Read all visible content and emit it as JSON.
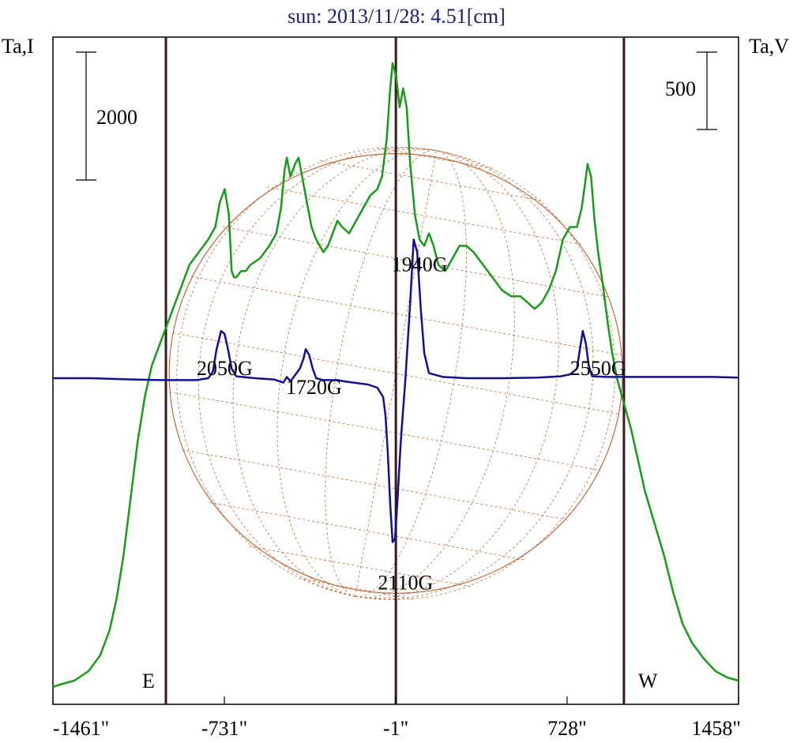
{
  "chart_data": {
    "type": "line",
    "title": "sun: 2013/11/28: 4.51[cm]",
    "left_axis_label": "Ta,I",
    "right_axis_label": "Ta,V",
    "xlim": [
      -1461,
      1458
    ],
    "x_ticks": [
      {
        "value": -1461,
        "label": "-1461\""
      },
      {
        "value": -731,
        "label": "-731\""
      },
      {
        "value": -1,
        "label": "-1\""
      },
      {
        "value": 728,
        "label": "728\""
      },
      {
        "value": 1458,
        "label": "1458\""
      }
    ],
    "scale_bars": [
      {
        "side": "left",
        "label": "2000"
      },
      {
        "side": "right",
        "label": "500"
      }
    ],
    "limb_lines": [
      {
        "x": -980,
        "label": "E"
      },
      {
        "x": -1,
        "label": ""
      },
      {
        "x": 970,
        "label": "W"
      }
    ],
    "solar_disk": {
      "center_x": -1,
      "radius": 965
    },
    "annotations": [
      {
        "text": "1940G",
        "x": 100,
        "level": 0.67
      },
      {
        "text": "2050G",
        "x": -730,
        "level": 0.505
      },
      {
        "text": "1720G",
        "x": -350,
        "level": 0.475
      },
      {
        "text": "2550G",
        "x": 860,
        "level": 0.505
      },
      {
        "text": "2110G",
        "x": 40,
        "level": 0.165
      }
    ],
    "colors": {
      "intensity": "#1a9a1a",
      "polarization": "#101090",
      "limb_lines": "#3a1a1a",
      "disk": "#c06a3a",
      "title": "#1c1c74",
      "frame": "#000000"
    },
    "series": [
      {
        "key": "intensity",
        "ylim": [
          0,
          1
        ],
        "points": [
          [
            -1461,
            0.01
          ],
          [
            -1420,
            0.015
          ],
          [
            -1370,
            0.02
          ],
          [
            -1310,
            0.035
          ],
          [
            -1260,
            0.06
          ],
          [
            -1220,
            0.1
          ],
          [
            -1190,
            0.15
          ],
          [
            -1160,
            0.22
          ],
          [
            -1130,
            0.31
          ],
          [
            -1100,
            0.4
          ],
          [
            -1070,
            0.47
          ],
          [
            -1040,
            0.52
          ],
          [
            -1000,
            0.56
          ],
          [
            -960,
            0.6
          ],
          [
            -920,
            0.64
          ],
          [
            -880,
            0.68
          ],
          [
            -840,
            0.7
          ],
          [
            -800,
            0.72
          ],
          [
            -770,
            0.74
          ],
          [
            -750,
            0.78
          ],
          [
            -730,
            0.8
          ],
          [
            -712,
            0.76
          ],
          [
            -700,
            0.67
          ],
          [
            -690,
            0.66
          ],
          [
            -680,
            0.66
          ],
          [
            -660,
            0.67
          ],
          [
            -640,
            0.67
          ],
          [
            -620,
            0.68
          ],
          [
            -580,
            0.69
          ],
          [
            -540,
            0.71
          ],
          [
            -510,
            0.73
          ],
          [
            -490,
            0.77
          ],
          [
            -475,
            0.83
          ],
          [
            -465,
            0.85
          ],
          [
            -450,
            0.82
          ],
          [
            -430,
            0.84
          ],
          [
            -415,
            0.85
          ],
          [
            -400,
            0.82
          ],
          [
            -380,
            0.78
          ],
          [
            -360,
            0.74
          ],
          [
            -340,
            0.72
          ],
          [
            -310,
            0.7
          ],
          [
            -290,
            0.71
          ],
          [
            -270,
            0.73
          ],
          [
            -250,
            0.75
          ],
          [
            -230,
            0.74
          ],
          [
            -200,
            0.73
          ],
          [
            -170,
            0.75
          ],
          [
            -140,
            0.77
          ],
          [
            -110,
            0.79
          ],
          [
            -80,
            0.8
          ],
          [
            -60,
            0.82
          ],
          [
            -40,
            0.88
          ],
          [
            -25,
            0.96
          ],
          [
            -15,
            1.0
          ],
          [
            0,
            0.98
          ],
          [
            15,
            0.93
          ],
          [
            30,
            0.96
          ],
          [
            45,
            0.93
          ],
          [
            60,
            0.84
          ],
          [
            80,
            0.76
          ],
          [
            100,
            0.72
          ],
          [
            120,
            0.71
          ],
          [
            140,
            0.73
          ],
          [
            160,
            0.71
          ],
          [
            180,
            0.68
          ],
          [
            210,
            0.67
          ],
          [
            240,
            0.69
          ],
          [
            270,
            0.71
          ],
          [
            300,
            0.71
          ],
          [
            330,
            0.7
          ],
          [
            370,
            0.68
          ],
          [
            410,
            0.66
          ],
          [
            450,
            0.64
          ],
          [
            490,
            0.63
          ],
          [
            530,
            0.63
          ],
          [
            560,
            0.62
          ],
          [
            590,
            0.61
          ],
          [
            620,
            0.62
          ],
          [
            650,
            0.64
          ],
          [
            680,
            0.67
          ],
          [
            710,
            0.72
          ],
          [
            740,
            0.74
          ],
          [
            770,
            0.74
          ],
          [
            790,
            0.77
          ],
          [
            805,
            0.81
          ],
          [
            815,
            0.84
          ],
          [
            830,
            0.82
          ],
          [
            845,
            0.75
          ],
          [
            860,
            0.7
          ],
          [
            880,
            0.65
          ],
          [
            900,
            0.59
          ],
          [
            920,
            0.54
          ],
          [
            940,
            0.5
          ],
          [
            970,
            0.46
          ],
          [
            1000,
            0.42
          ],
          [
            1030,
            0.37
          ],
          [
            1060,
            0.32
          ],
          [
            1100,
            0.27
          ],
          [
            1140,
            0.22
          ],
          [
            1180,
            0.16
          ],
          [
            1220,
            0.11
          ],
          [
            1260,
            0.08
          ],
          [
            1310,
            0.055
          ],
          [
            1360,
            0.035
          ],
          [
            1410,
            0.025
          ],
          [
            1458,
            0.02
          ]
        ]
      },
      {
        "key": "polarization",
        "ylim": [
          0,
          1
        ],
        "points": [
          [
            -1461,
            0.5
          ],
          [
            -1300,
            0.5
          ],
          [
            -1120,
            0.498
          ],
          [
            -1000,
            0.497
          ],
          [
            -850,
            0.497
          ],
          [
            -800,
            0.5
          ],
          [
            -780,
            0.51
          ],
          [
            -765,
            0.545
          ],
          [
            -745,
            0.575
          ],
          [
            -730,
            0.57
          ],
          [
            -715,
            0.545
          ],
          [
            -700,
            0.515
          ],
          [
            -680,
            0.503
          ],
          [
            -600,
            0.5
          ],
          [
            -520,
            0.498
          ],
          [
            -480,
            0.493
          ],
          [
            -465,
            0.502
          ],
          [
            -450,
            0.495
          ],
          [
            -430,
            0.505
          ],
          [
            -410,
            0.515
          ],
          [
            -395,
            0.53
          ],
          [
            -385,
            0.546
          ],
          [
            -370,
            0.537
          ],
          [
            -355,
            0.515
          ],
          [
            -340,
            0.5
          ],
          [
            -310,
            0.497
          ],
          [
            -250,
            0.497
          ],
          [
            -220,
            0.495
          ],
          [
            -180,
            0.493
          ],
          [
            -120,
            0.49
          ],
          [
            -80,
            0.485
          ],
          [
            -55,
            0.47
          ],
          [
            -45,
            0.44
          ],
          [
            -35,
            0.38
          ],
          [
            -25,
            0.3
          ],
          [
            -15,
            0.24
          ],
          [
            -5,
            0.245
          ],
          [
            5,
            0.3
          ],
          [
            20,
            0.4
          ],
          [
            40,
            0.5
          ],
          [
            60,
            0.62
          ],
          [
            75,
            0.72
          ],
          [
            90,
            0.7
          ],
          [
            105,
            0.61
          ],
          [
            120,
            0.54
          ],
          [
            140,
            0.508
          ],
          [
            200,
            0.502
          ],
          [
            300,
            0.5
          ],
          [
            450,
            0.5
          ],
          [
            600,
            0.501
          ],
          [
            700,
            0.503
          ],
          [
            740,
            0.506
          ],
          [
            770,
            0.515
          ],
          [
            780,
            0.54
          ],
          [
            795,
            0.575
          ],
          [
            808,
            0.555
          ],
          [
            820,
            0.52
          ],
          [
            835,
            0.503
          ],
          [
            900,
            0.502
          ],
          [
            1050,
            0.502
          ],
          [
            1200,
            0.502
          ],
          [
            1350,
            0.502
          ],
          [
            1458,
            0.501
          ]
        ]
      }
    ]
  }
}
